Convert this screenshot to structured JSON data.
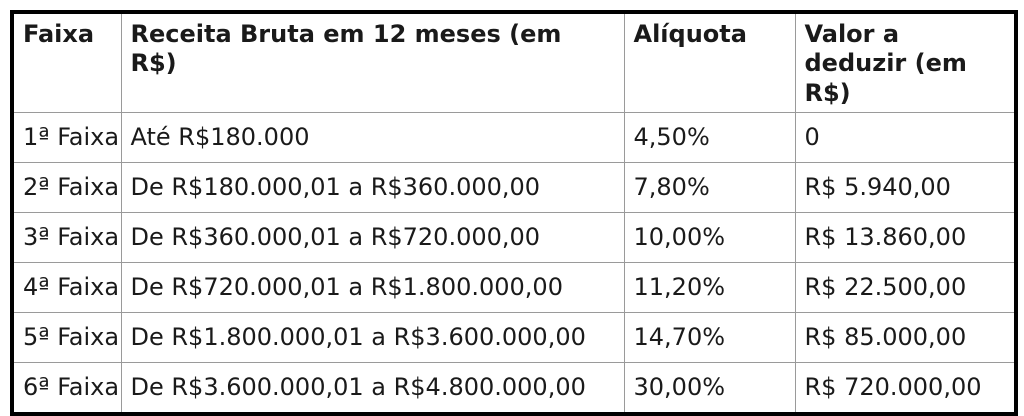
{
  "table": {
    "name": "tabela-faixas-aliquotas",
    "columns": [
      {
        "key": "faixa",
        "label": "Faixa"
      },
      {
        "key": "receita",
        "label": "Receita Bruta em 12 meses (em R$)"
      },
      {
        "key": "aliquota",
        "label": "Alíquota"
      },
      {
        "key": "deduzir",
        "label": "Valor a deduzir (em R$)"
      }
    ],
    "rows": [
      [
        "1ª Faixa",
        "Até R$180.000",
        "4,50%",
        "0"
      ],
      [
        "2ª Faixa",
        "De R$180.000,01 a R$360.000,00",
        "7,80%",
        "R$ 5.940,00"
      ],
      [
        "3ª Faixa",
        "De R$360.000,01 a R$720.000,00",
        "10,00%",
        "R$ 13.860,00"
      ],
      [
        "4ª Faixa",
        "De R$720.000,01 a R$1.800.000,00",
        "11,20%",
        "R$ 22.500,00"
      ],
      [
        "5ª Faixa",
        "De R$1.800.000,01 a R$3.600.000,00",
        "14,70%",
        "R$ 85.000,00"
      ],
      [
        "6ª Faixa",
        "De R$3.600.000,01 a R$4.800.000,00",
        "30,00%",
        "R$ 720.000,00"
      ]
    ],
    "colors": {
      "outer_border": "#000000",
      "inner_grid": "#9a9a9a",
      "text": "#1a1a1a",
      "background": "#ffffff"
    }
  }
}
